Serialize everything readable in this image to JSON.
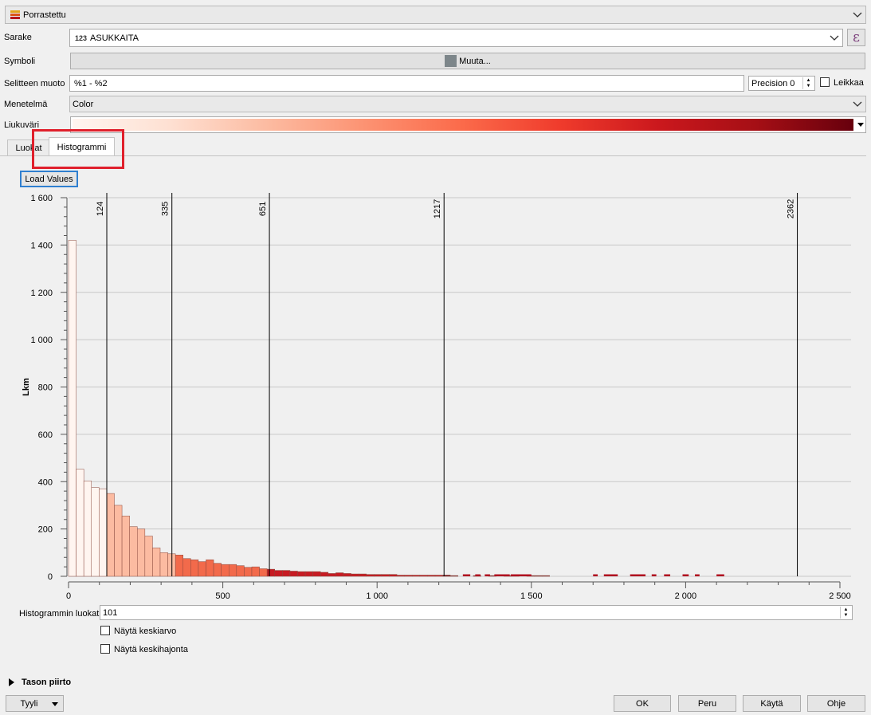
{
  "renderer": {
    "selected": "Porrastettu"
  },
  "form": {
    "column_label": "Sarake",
    "column_type_badge": "123",
    "column_value": "ASUKKAITA",
    "symbol_label": "Symboli",
    "symbol_button": "Muuta...",
    "legend_format_label": "Selitteen muoto",
    "legend_format_value": "%1 - %2",
    "precision_value": "Precision 0",
    "trim_label": "Leikkaa",
    "method_label": "Menetelmä",
    "method_value": "Color",
    "color_ramp_label": "Liukuväri"
  },
  "tabs": [
    {
      "label": "Luokat",
      "active": false
    },
    {
      "label": "Histogrammi",
      "active": true
    }
  ],
  "load_values_button": "Load Values",
  "chart_data": {
    "type": "bar",
    "ylabel": "Lkm",
    "xlim": [
      0,
      2500
    ],
    "ylim": [
      0,
      1600
    ],
    "xticks": [
      0,
      500,
      1000,
      1500,
      2000,
      2500
    ],
    "xtick_labels": [
      "0",
      "500",
      "1 000",
      "1 500",
      "2 000",
      "2 500"
    ],
    "yticks": [
      0,
      200,
      400,
      600,
      800,
      1000,
      1200,
      1400,
      1600
    ],
    "ytick_labels": [
      "0",
      "200",
      "400",
      "600",
      "800",
      "1 000",
      "1 200",
      "1 400",
      "1 600"
    ],
    "bin_width": 24.75,
    "bin_values": [
      1420,
      453,
      403,
      375,
      370,
      350,
      300,
      255,
      210,
      200,
      170,
      120,
      100,
      95,
      90,
      75,
      70,
      62,
      70,
      55,
      50,
      50,
      45,
      38,
      40,
      32,
      30,
      25,
      25,
      22,
      20,
      20,
      20,
      17,
      12,
      15,
      12,
      10,
      10,
      8,
      8,
      8,
      8,
      5,
      5,
      5,
      5,
      5,
      5,
      5,
      3,
      0,
      0,
      3,
      0,
      3,
      0,
      3,
      3,
      0,
      3,
      3,
      3,
      0,
      0,
      0,
      0,
      0,
      0,
      0,
      0,
      0,
      0,
      0,
      0,
      0,
      0,
      0,
      0,
      0,
      0,
      0,
      0,
      0,
      0,
      0,
      0,
      0,
      0,
      0,
      0,
      0,
      0,
      0,
      0,
      0,
      0,
      0,
      0,
      0,
      0
    ],
    "small_bins": [
      [
        1278,
        1302
      ],
      [
        1318,
        1335
      ],
      [
        1349,
        1366
      ],
      [
        1380,
        1396
      ],
      [
        1390,
        1430
      ],
      [
        1433,
        1500
      ],
      [
        1700,
        1715
      ],
      [
        1735,
        1780
      ],
      [
        1820,
        1870
      ],
      [
        1890,
        1905
      ],
      [
        1930,
        1950
      ],
      [
        1990,
        2010
      ],
      [
        2030,
        2045
      ],
      [
        2100,
        2125
      ]
    ],
    "class_breaks": [
      124,
      335,
      651,
      1217,
      2362
    ],
    "class_break_labels": [
      "124",
      "335",
      "651",
      "1217",
      "2362"
    ],
    "class_colors": [
      "#fff5f0",
      "#fcbba1",
      "#f26a4b",
      "#c71a22",
      "#67000d"
    ]
  },
  "histogram_classes_label": "Histogrammin luokat",
  "histogram_classes_value": "101",
  "show_mean_label": "Näytä keskiarvo",
  "show_stddev_label": "Näytä keskihajonta",
  "layer_rendering_label": "Tason piirto",
  "style_button": "Tyyli",
  "ok_button": "OK",
  "cancel_button": "Peru",
  "apply_button": "Käytä",
  "help_button": "Ohje"
}
